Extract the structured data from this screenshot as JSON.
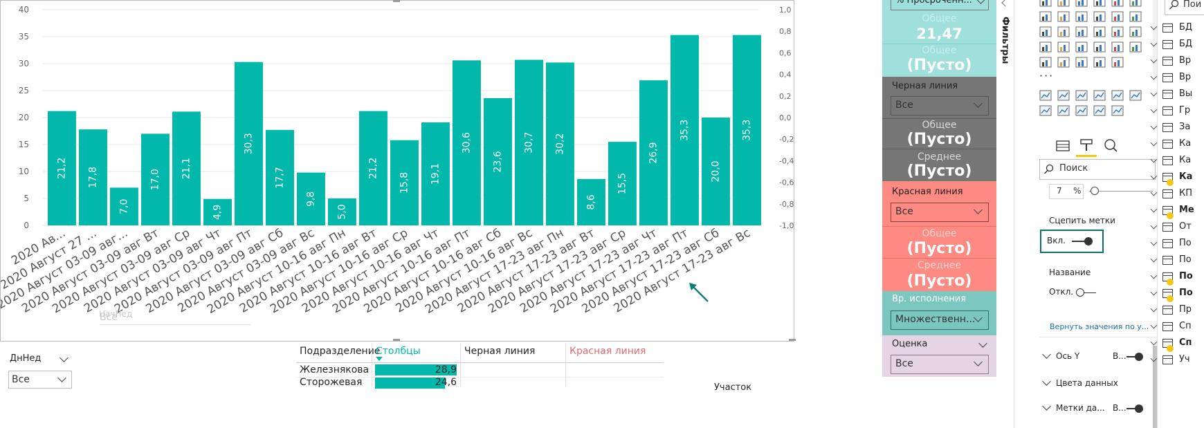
{
  "chart": {
    "y_left_ticks": [
      "40",
      "35",
      "30",
      "25",
      "20",
      "15",
      "10",
      "5",
      "0"
    ],
    "y_right_ticks": [
      "1,0",
      "0,8",
      "0,6",
      "0,4",
      "0,2",
      "0,0",
      "-0,2",
      "-0,4",
      "-0,6",
      "-0,8",
      "-1,0"
    ],
    "bar_color": "#01b8aa"
  },
  "chart_data": {
    "type": "bar",
    "categories": [
      "2020 Ав...",
      "2020 Август 27 ...",
      "2020 Август 03-09 авг...",
      "2020 Август 03-09 авг Вт",
      "2020 Август 03-09 авг Ср",
      "2020 Август 03-09 авг Чт",
      "2020 Август 03-09 авг Пт",
      "2020 Август 03-09 авг Сб",
      "2020 Август 03-09 авг Вс",
      "2020 Август 10-16 авг Пн",
      "2020 Август 10-16 авг Вт",
      "2020 Август 10-16 авг Ср",
      "2020 Август 10-16 авг Чт",
      "2020 Август 10-16 авг Пт",
      "2020 Август 10-16 авг Сб",
      "2020 Август 10-16 авг Вс",
      "2020 Август 17-23 авг Пн",
      "2020 Август 17-23 авг Вт",
      "2020 Август 17-23 авг Ср",
      "2020 Август 17-23 авг Чт",
      "2020 Август 17-23 авг Пт",
      "2020 Август 17-23 авг Сб",
      "2020 Август 17-23 авг Вс"
    ],
    "values": [
      21.2,
      17.8,
      7.0,
      17.0,
      21.1,
      4.9,
      30.3,
      17.7,
      9.8,
      5.0,
      21.2,
      15.8,
      19.1,
      30.6,
      23.6,
      30.7,
      30.2,
      8.6,
      15.5,
      26.9,
      35.3,
      20.0,
      35.3
    ],
    "labels": [
      "21,2",
      "17,8",
      "7,0",
      "17,0",
      "21,1",
      "4,9",
      "30,3",
      "17,7",
      "9,8",
      "5,0",
      "21,2",
      "15,8",
      "19,1",
      "30,6",
      "23,6",
      "30,7",
      "30,2",
      "8,6",
      "15,5",
      "26,9",
      "35,3",
      "20,0",
      "35,3"
    ],
    "ylim": [
      0,
      40
    ],
    "y2lim": [
      -1.0,
      1.0
    ],
    "grid": true
  },
  "ghost_slicer": {
    "title": "НачНед",
    "value": "Все"
  },
  "weekday_slicer": {
    "title": "ДнНед",
    "value": "Все"
  },
  "table": {
    "headers": [
      "Подразделение",
      "Столбцы",
      "Черная линия",
      "Красная линия"
    ],
    "rows": [
      {
        "name": "Железнякова",
        "value": "28,9",
        "bar": 0.62
      },
      {
        "name": "Сторожевая",
        "value": "24,6",
        "bar": 0.53
      }
    ],
    "partial_label": "Участок"
  },
  "cards": {
    "top_dropdown": "% Просроченн...",
    "teal": {
      "label1": "Общее",
      "value1": "21,47",
      "label2": "Общее",
      "value2": "(Пусто)"
    },
    "black": {
      "title": "Черная линия",
      "select": "Все",
      "label1": "Общее",
      "value1": "(Пусто)",
      "label2": "Среднее",
      "value2": "(Пусто)"
    },
    "red": {
      "title": "Красная линия",
      "select": "Все",
      "label1": "Общее",
      "value1": "(Пусто)",
      "label2": "Среднее",
      "value2": "(Пусто)"
    },
    "exec": {
      "title": "Вр. исполнения",
      "select": "Множественн..."
    },
    "rating": {
      "title": "Оценка",
      "select": "Все"
    },
    "colors": {
      "teal": "#9fdfdc",
      "black": "#767676",
      "red": "#fd8a83",
      "exec": "#7cc6c0",
      "rating": "#e5d4e3"
    }
  },
  "filters_tab": "Фильтры",
  "format_pane": {
    "search_placeholder": "Поиск",
    "percent_value": "7",
    "percent_unit": "%",
    "stitch_labels": "Сцепить метки",
    "toggle_on": "Вкл.",
    "title_label": "Название",
    "toggle_off": "Откл.",
    "reset_link": "Вернуть значения по у...",
    "sections": [
      {
        "label": "Ось Y",
        "state": "В..."
      },
      {
        "label": "Цвета данных",
        "state": ""
      },
      {
        "label": "Метки да...",
        "state": "В..."
      }
    ]
  },
  "fields_pane": {
    "search_placeholder": "Пои",
    "items": [
      "БД",
      "БД",
      "Вр",
      "Вр",
      "Вы",
      "Гр",
      "За",
      "Ка",
      "Ка",
      "Ка",
      "КП",
      "Ме",
      "От",
      "По",
      "По",
      "По",
      "По",
      "Пр",
      "Сп",
      "Сп",
      "Уч"
    ]
  }
}
